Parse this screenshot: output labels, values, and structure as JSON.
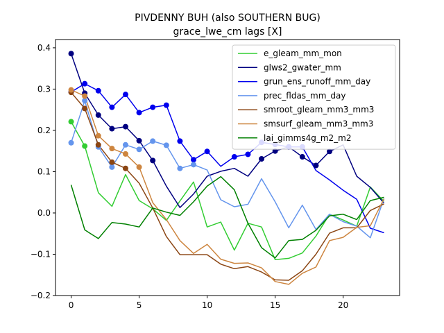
{
  "chart_data": {
    "type": "line",
    "title": "PIVDENNY BUH (also SOUTHERN BUG)",
    "subtitle": "grace_lwe_cm lags [X]",
    "xlabel": "",
    "ylabel": "",
    "xlim": [
      -1.15,
      24.15
    ],
    "ylim": [
      -0.2,
      0.42
    ],
    "xticks": [
      0,
      5,
      10,
      15,
      20
    ],
    "yticks": [
      -0.2,
      -0.1,
      0.0,
      0.1,
      0.2,
      0.3,
      0.4
    ],
    "xtick_labels": [
      "0",
      "5",
      "10",
      "15",
      "20"
    ],
    "ytick_labels": [
      "−0.2",
      "−0.1",
      "0.0",
      "0.1",
      "0.2",
      "0.3",
      "0.4"
    ],
    "grid": false,
    "legend_position": "top-right",
    "x": [
      0,
      1,
      2,
      3,
      4,
      5,
      6,
      7,
      8,
      9,
      10,
      11,
      12,
      13,
      14,
      15,
      16,
      17,
      18,
      19,
      20,
      21,
      22,
      23
    ],
    "series": [
      {
        "name": "e_gleam_mm_mon",
        "color": "#32cd32",
        "values": [
          0.221,
          0.162,
          0.049,
          0.016,
          0.093,
          0.03,
          0.01,
          -0.018,
          0.029,
          0.075,
          -0.034,
          -0.022,
          -0.09,
          -0.025,
          -0.034,
          -0.113,
          -0.11,
          -0.097,
          -0.056,
          -0.003,
          -0.017,
          -0.032,
          0.063,
          0.028
        ],
        "markers": [
          0,
          1
        ]
      },
      {
        "name": "glws2_gwater_mm",
        "color": "#000080",
        "values": [
          0.386,
          0.29,
          0.237,
          0.204,
          0.209,
          0.175,
          0.127,
          0.065,
          0.013,
          0.046,
          0.089,
          0.101,
          0.108,
          0.089,
          0.131,
          0.15,
          0.16,
          0.136,
          0.115,
          0.149,
          0.165,
          0.089,
          0.062,
          0.024
        ],
        "markers": [
          0,
          1,
          2,
          3,
          4,
          5,
          6,
          14,
          15,
          16,
          17,
          18,
          19
        ]
      },
      {
        "name": "grun_ens_runoff_mm_day",
        "color": "#0000ee",
        "values": [
          0.293,
          0.313,
          0.296,
          0.256,
          0.287,
          0.243,
          0.256,
          0.261,
          0.174,
          0.129,
          0.149,
          0.113,
          0.136,
          0.142,
          0.171,
          0.166,
          0.16,
          0.16,
          0.103,
          0.08,
          0.055,
          0.033,
          -0.037,
          -0.048
        ],
        "markers": [
          0,
          1,
          2,
          3,
          4,
          5,
          6,
          7,
          8,
          9,
          10,
          12,
          13,
          14,
          15,
          16,
          17
        ]
      },
      {
        "name": "prec_fldas_mm_day",
        "color": "#6495ed",
        "values": [
          0.17,
          0.272,
          0.16,
          0.111,
          0.165,
          0.154,
          0.174,
          0.164,
          0.108,
          0.117,
          0.104,
          0.032,
          0.015,
          0.021,
          0.083,
          0.027,
          -0.036,
          0.019,
          -0.04,
          -0.003,
          -0.021,
          -0.032,
          -0.06,
          0.035
        ],
        "markers": [
          0,
          1,
          2,
          3,
          4,
          5,
          6,
          7,
          8,
          9
        ]
      },
      {
        "name": "smroot_gleam_mm3_mm3",
        "color": "#8b4513",
        "values": [
          0.292,
          0.253,
          0.165,
          0.123,
          0.108,
          0.072,
          0.012,
          -0.057,
          -0.101,
          -0.101,
          -0.101,
          -0.124,
          -0.135,
          -0.13,
          -0.143,
          -0.162,
          -0.163,
          -0.14,
          -0.1,
          -0.049,
          -0.036,
          -0.036,
          0.006,
          0.022
        ],
        "markers": [
          0,
          1,
          2,
          3,
          4
        ]
      },
      {
        "name": "smsurf_gleam_mm3_mm3",
        "color": "#cd853f",
        "values": [
          0.298,
          0.283,
          0.187,
          0.156,
          0.143,
          0.111,
          0.025,
          -0.016,
          -0.067,
          -0.098,
          -0.076,
          -0.112,
          -0.122,
          -0.121,
          -0.133,
          -0.166,
          -0.173,
          -0.146,
          -0.131,
          -0.067,
          -0.059,
          -0.035,
          -0.031,
          0.034
        ],
        "markers": [
          0,
          1,
          2,
          3,
          4,
          5
        ]
      },
      {
        "name": "lai_gimms4g_m2_m2",
        "color": "#008000",
        "values": [
          0.068,
          -0.041,
          -0.062,
          -0.023,
          -0.027,
          -0.034,
          0.012,
          0.002,
          -0.006,
          0.027,
          0.065,
          0.088,
          0.056,
          -0.025,
          -0.084,
          -0.109,
          -0.067,
          -0.064,
          -0.042,
          -0.007,
          -0.003,
          -0.016,
          0.03,
          0.038
        ],
        "markers": []
      }
    ]
  }
}
